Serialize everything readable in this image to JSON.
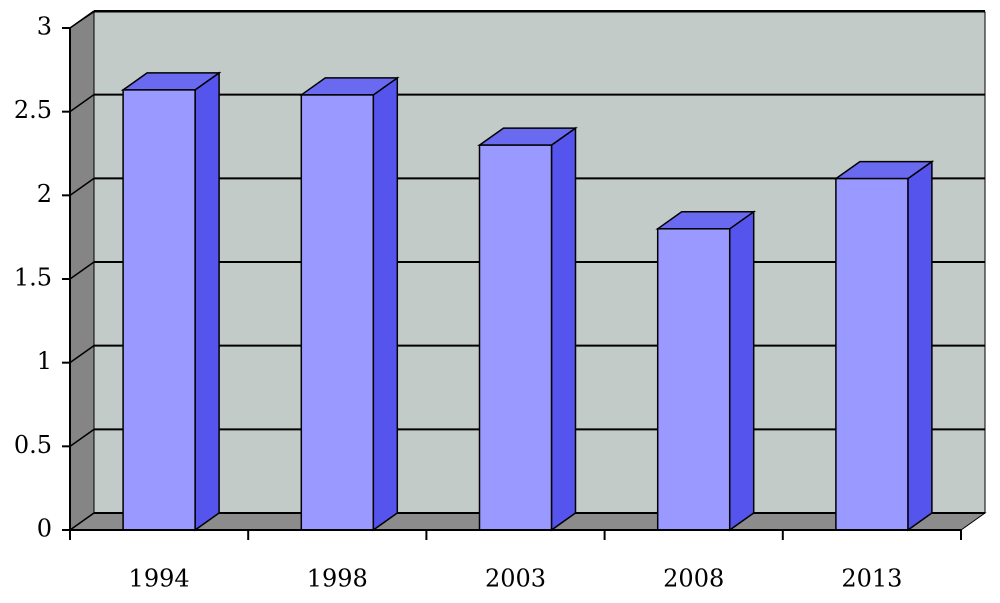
{
  "chart_data": {
    "type": "bar3d",
    "categories": [
      "1994",
      "1998",
      "2003",
      "2008",
      "2013"
    ],
    "values": [
      2.63,
      2.6,
      2.3,
      1.8,
      2.1
    ],
    "color": "#9999ff",
    "side_color": "#5555ee",
    "top_color": "#6a6af0",
    "ylim": [
      0,
      3
    ],
    "yticks": [
      0,
      0.5,
      1,
      1.5,
      2,
      2.5,
      3
    ],
    "grid": true
  }
}
